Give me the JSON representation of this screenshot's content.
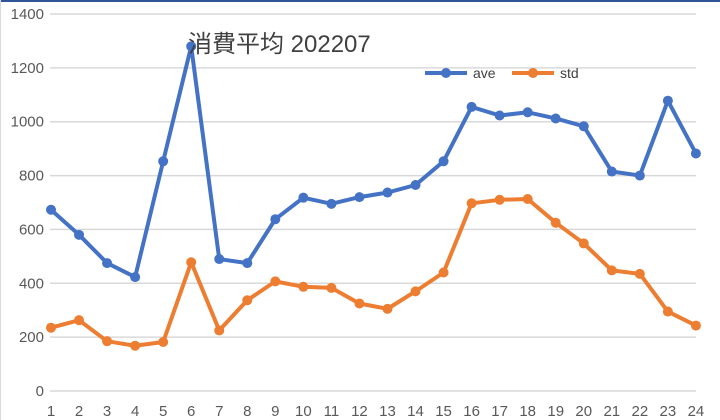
{
  "chart_data": {
    "type": "line",
    "title": "消費平均 202207",
    "xlabel": "",
    "ylabel": "",
    "x": [
      1,
      2,
      3,
      4,
      5,
      6,
      7,
      8,
      9,
      10,
      11,
      12,
      13,
      14,
      15,
      16,
      17,
      18,
      19,
      20,
      21,
      22,
      23,
      24
    ],
    "ylim": [
      0,
      1400
    ],
    "yticks": [
      0,
      200,
      400,
      600,
      800,
      1000,
      1200,
      1400
    ],
    "grid": true,
    "legend_position": "top-right (inside plot)",
    "series": [
      {
        "name": "ave",
        "color": "#4472c4",
        "values": [
          673,
          580,
          475,
          423,
          853,
          1280,
          490,
          475,
          638,
          718,
          695,
          720,
          737,
          765,
          853,
          1055,
          1023,
          1035,
          1012,
          983,
          815,
          800,
          1078,
          882
        ]
      },
      {
        "name": "std",
        "color": "#ed7d31",
        "values": [
          235,
          263,
          185,
          168,
          182,
          478,
          225,
          337,
          407,
          387,
          383,
          325,
          305,
          370,
          440,
          697,
          710,
          713,
          625,
          548,
          448,
          435,
          295,
          243
        ]
      }
    ]
  },
  "colors": {
    "grid": "#d9d9d9",
    "text": "#595959",
    "topbar": "#2f5597"
  }
}
